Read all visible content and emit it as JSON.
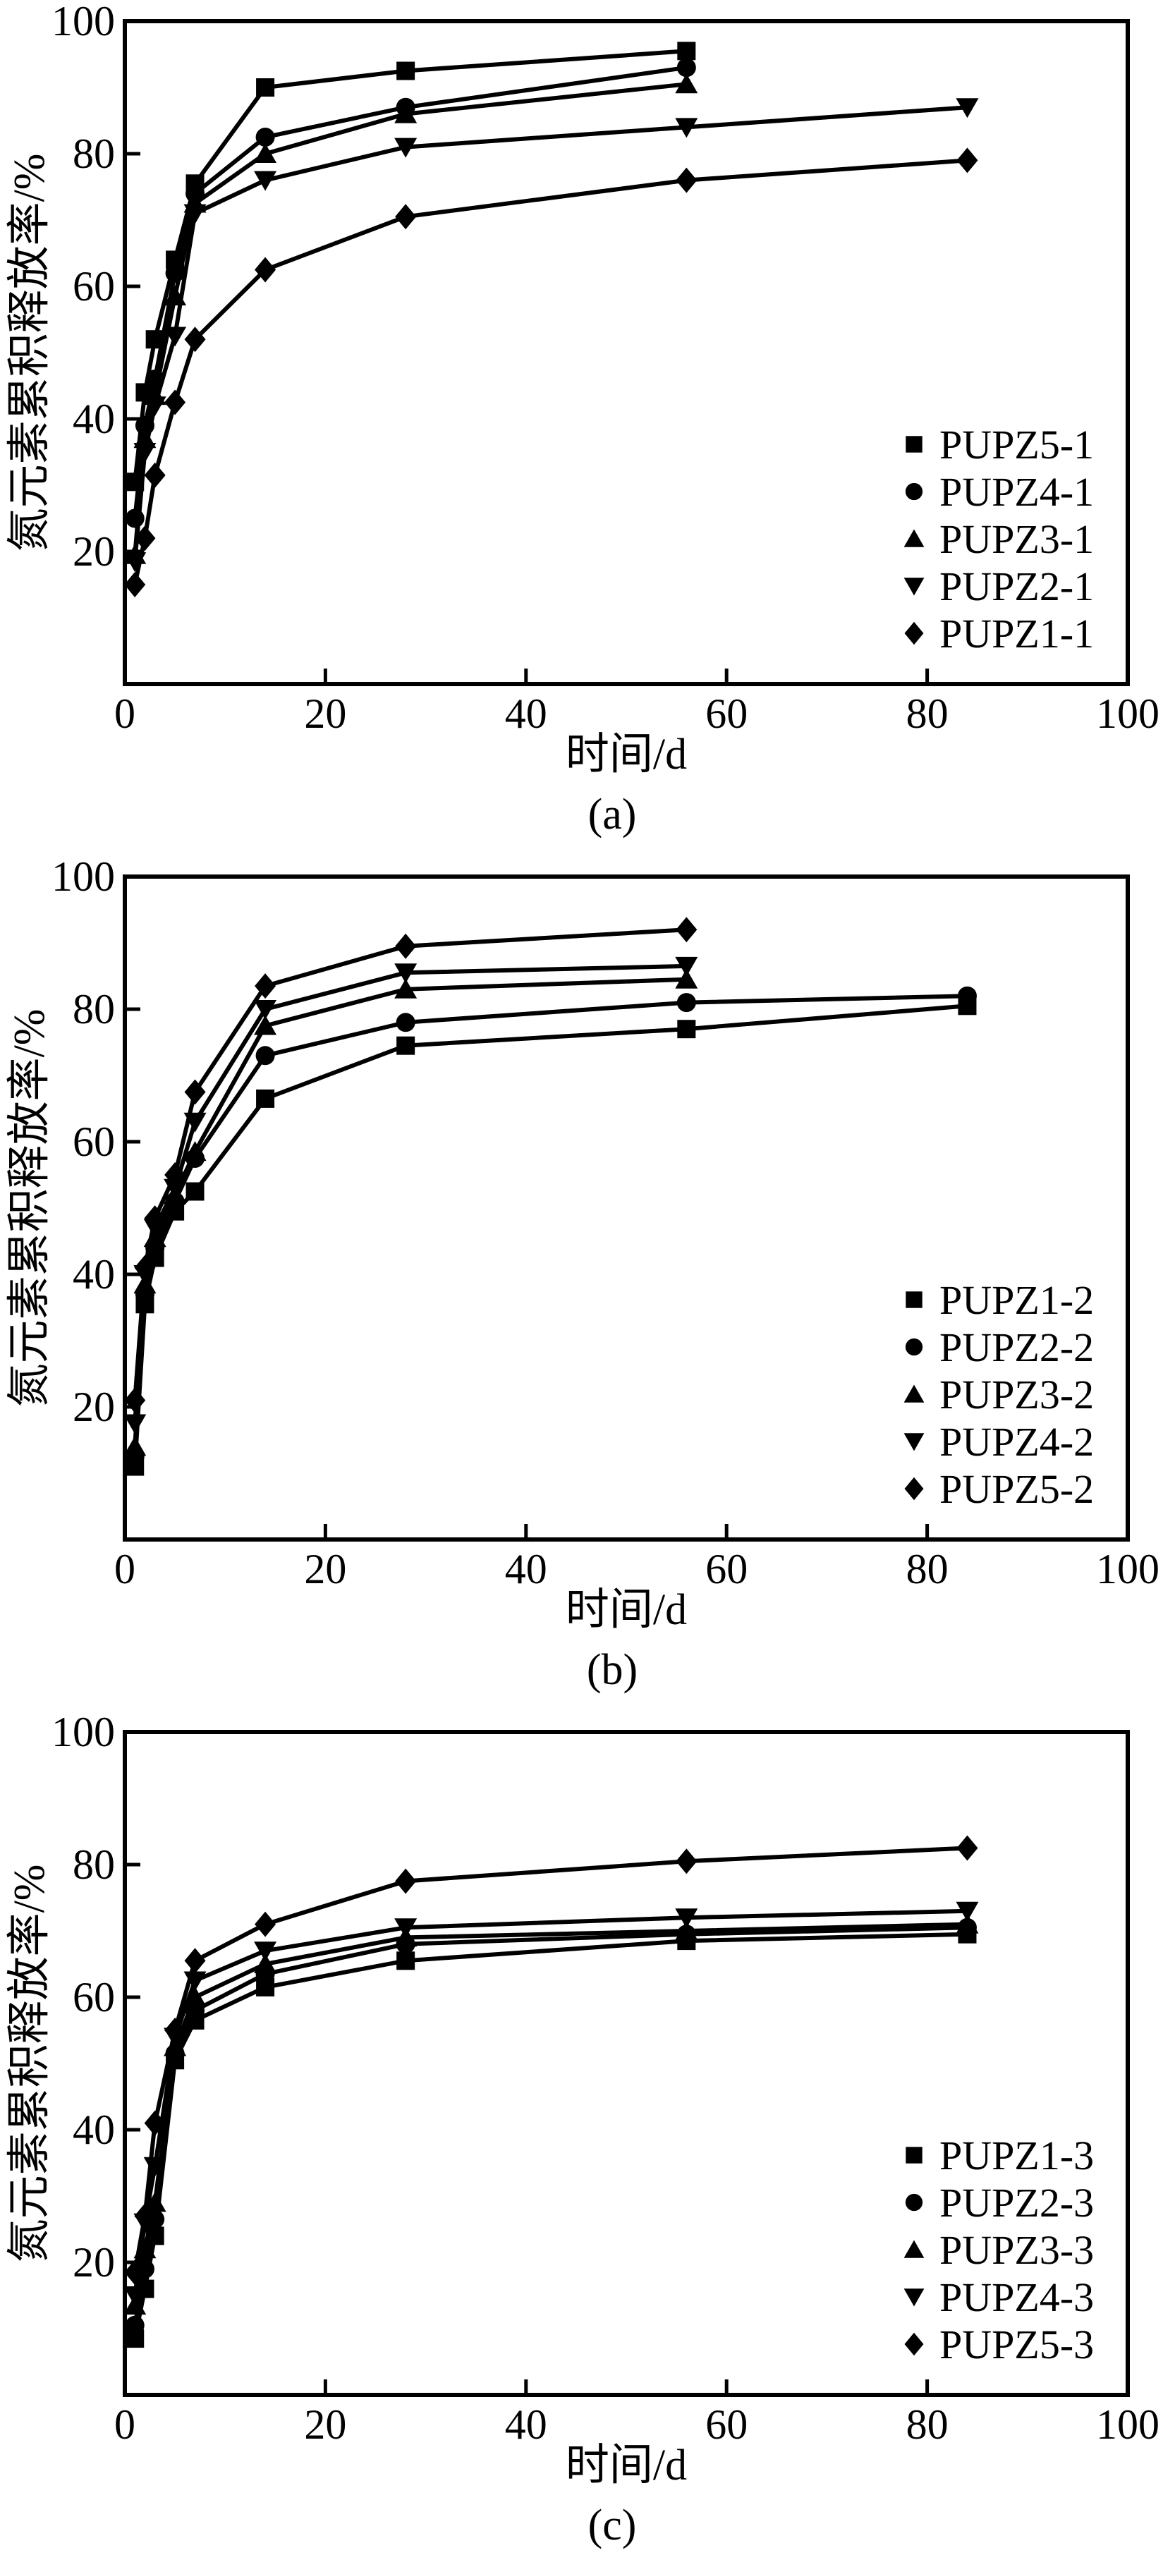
{
  "page": {
    "background": "#ffffff",
    "ink": "#000000"
  },
  "chart_data": [
    {
      "id": "a",
      "type": "line",
      "panel_label": "(a)",
      "xlabel": "时间/d",
      "ylabel": "氮元素累积释放率/%",
      "xlim": [
        0,
        100
      ],
      "ylim": [
        0,
        100
      ],
      "xticks": [
        0,
        20,
        40,
        60,
        80,
        100
      ],
      "yticks": [
        20,
        40,
        60,
        80,
        100
      ],
      "grid": false,
      "legend_position": "right-center",
      "x_days": [
        1,
        2,
        3,
        5,
        7,
        14,
        28,
        56,
        84
      ],
      "series": [
        {
          "name": "PUPZ5-1",
          "marker": "square",
          "points": [
            [
              1,
              30.5
            ],
            [
              2,
              44
            ],
            [
              3,
              52
            ],
            [
              5,
              64
            ],
            [
              7,
              75.5
            ],
            [
              14,
              90
            ],
            [
              28,
              92.5
            ],
            [
              56,
              95.5
            ]
          ]
        },
        {
          "name": "PUPZ4-1",
          "marker": "circle",
          "points": [
            [
              1,
              25
            ],
            [
              2,
              39
            ],
            [
              3,
              46
            ],
            [
              5,
              62
            ],
            [
              7,
              74
            ],
            [
              14,
              82.5
            ],
            [
              28,
              87
            ],
            [
              56,
              93
            ]
          ]
        },
        {
          "name": "PUPZ3-1",
          "marker": "triangle-up",
          "points": [
            [
              1,
              19.5
            ],
            [
              2,
              37
            ],
            [
              3,
              43.5
            ],
            [
              5,
              58.5
            ],
            [
              7,
              72.5
            ],
            [
              14,
              80
            ],
            [
              28,
              86
            ],
            [
              56,
              90.5
            ]
          ]
        },
        {
          "name": "PUPZ2-1",
          "marker": "triangle-down",
          "points": [
            [
              1,
              18.5
            ],
            [
              2,
              35
            ],
            [
              3,
              42
            ],
            [
              5,
              52.5
            ],
            [
              7,
              71
            ],
            [
              14,
              76
            ],
            [
              28,
              81
            ],
            [
              56,
              84
            ],
            [
              84,
              87
            ]
          ]
        },
        {
          "name": "PUPZ1-1",
          "marker": "diamond",
          "points": [
            [
              1,
              15
            ],
            [
              2,
              22
            ],
            [
              3,
              31.5
            ],
            [
              5,
              42.5
            ],
            [
              7,
              52
            ],
            [
              14,
              62.5
            ],
            [
              28,
              70.5
            ],
            [
              56,
              76
            ],
            [
              84,
              79
            ]
          ]
        }
      ]
    },
    {
      "id": "b",
      "type": "line",
      "panel_label": "(b)",
      "xlabel": "时间/d",
      "ylabel": "氮元素累积释放率/%",
      "xlim": [
        0,
        100
      ],
      "ylim": [
        0,
        100
      ],
      "xticks": [
        0,
        20,
        40,
        60,
        80,
        100
      ],
      "yticks": [
        20,
        40,
        60,
        80,
        100
      ],
      "grid": false,
      "legend_position": "right-center",
      "x_days": [
        1,
        2,
        3,
        5,
        7,
        14,
        28,
        56,
        84
      ],
      "series": [
        {
          "name": "PUPZ1-2",
          "marker": "square",
          "points": [
            [
              1,
              11
            ],
            [
              2,
              35.5
            ],
            [
              3,
              42.5
            ],
            [
              5,
              49.5
            ],
            [
              7,
              52.5
            ],
            [
              14,
              66.5
            ],
            [
              28,
              74.5
            ],
            [
              56,
              77
            ],
            [
              84,
              80.5
            ]
          ]
        },
        {
          "name": "PUPZ2-2",
          "marker": "circle",
          "points": [
            [
              1,
              12.5
            ],
            [
              2,
              37
            ],
            [
              3,
              44
            ],
            [
              5,
              51
            ],
            [
              7,
              57.5
            ],
            [
              14,
              73
            ],
            [
              28,
              78
            ],
            [
              56,
              81
            ],
            [
              84,
              82
            ]
          ]
        },
        {
          "name": "PUPZ3-2",
          "marker": "triangle-up",
          "points": [
            [
              1,
              14
            ],
            [
              2,
              38.5
            ],
            [
              3,
              45.5
            ],
            [
              5,
              52
            ],
            [
              7,
              58.5
            ],
            [
              14,
              77.5
            ],
            [
              28,
              83
            ],
            [
              56,
              84.5
            ]
          ]
        },
        {
          "name": "PUPZ4-2",
          "marker": "triangle-down",
          "points": [
            [
              1,
              17.5
            ],
            [
              2,
              40
            ],
            [
              3,
              47
            ],
            [
              5,
              53
            ],
            [
              7,
              63
            ],
            [
              14,
              80
            ],
            [
              28,
              85.5
            ],
            [
              56,
              86.5
            ]
          ]
        },
        {
          "name": "PUPZ5-2",
          "marker": "diamond",
          "points": [
            [
              1,
              21
            ],
            [
              2,
              41
            ],
            [
              3,
              48.5
            ],
            [
              5,
              55
            ],
            [
              7,
              67.5
            ],
            [
              14,
              83.5
            ],
            [
              28,
              89.5
            ],
            [
              56,
              92
            ]
          ]
        }
      ]
    },
    {
      "id": "c",
      "type": "line",
      "panel_label": "(c)",
      "xlabel": "时间/d",
      "ylabel": "氮元素累积释放率/%",
      "xlim": [
        0,
        100
      ],
      "ylim": [
        0,
        100
      ],
      "xticks": [
        0,
        20,
        40,
        60,
        80,
        100
      ],
      "yticks": [
        20,
        40,
        60,
        80,
        100
      ],
      "grid": false,
      "legend_position": "right-center",
      "x_days": [
        1,
        2,
        3,
        5,
        7,
        14,
        28,
        56,
        84
      ],
      "series": [
        {
          "name": "PUPZ1-3",
          "marker": "square",
          "points": [
            [
              1,
              8.5
            ],
            [
              2,
              16
            ],
            [
              3,
              24
            ],
            [
              5,
              50.5
            ],
            [
              7,
              56.5
            ],
            [
              14,
              61.5
            ],
            [
              28,
              65.5
            ],
            [
              56,
              68.5
            ],
            [
              84,
              69.5
            ]
          ]
        },
        {
          "name": "PUPZ2-3",
          "marker": "circle",
          "points": [
            [
              1,
              10.5
            ],
            [
              2,
              19
            ],
            [
              3,
              26.5
            ],
            [
              5,
              51.5
            ],
            [
              7,
              58
            ],
            [
              14,
              63.5
            ],
            [
              28,
              68
            ],
            [
              56,
              69.5
            ],
            [
              84,
              70.5
            ]
          ]
        },
        {
          "name": "PUPZ3-3",
          "marker": "triangle-up",
          "points": [
            [
              1,
              13.5
            ],
            [
              2,
              22
            ],
            [
              3,
              29
            ],
            [
              5,
              52.5
            ],
            [
              7,
              60
            ],
            [
              14,
              65
            ],
            [
              28,
              69
            ],
            [
              56,
              70
            ],
            [
              84,
              71
            ]
          ]
        },
        {
          "name": "PUPZ4-3",
          "marker": "triangle-down",
          "points": [
            [
              1,
              15
            ],
            [
              2,
              26
            ],
            [
              3,
              34.5
            ],
            [
              5,
              54
            ],
            [
              7,
              62.5
            ],
            [
              14,
              67
            ],
            [
              28,
              70.5
            ],
            [
              56,
              72
            ],
            [
              84,
              73
            ]
          ]
        },
        {
          "name": "PUPZ5-3",
          "marker": "diamond",
          "points": [
            [
              1,
              18.5
            ],
            [
              2,
              27
            ],
            [
              3,
              41
            ],
            [
              5,
              55
            ],
            [
              7,
              65.5
            ],
            [
              14,
              71
            ],
            [
              28,
              77.5
            ],
            [
              56,
              80.5
            ],
            [
              84,
              82.5
            ]
          ]
        }
      ]
    }
  ]
}
